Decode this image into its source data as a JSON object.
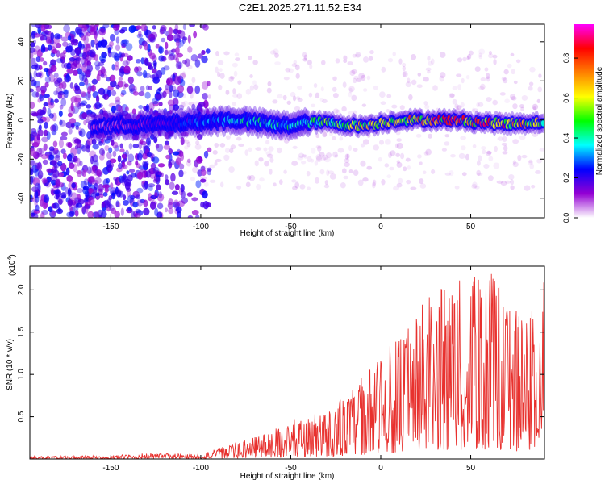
{
  "title": "C2E1.2025.271.11.52.E34",
  "chart_data": [
    {
      "type": "heatmap",
      "name": "spectrogram",
      "xlabel": "Height of straight line (km)",
      "ylabel": "Frequency (Hz)",
      "xlim": [
        -195,
        91
      ],
      "ylim": [
        -50,
        49
      ],
      "xticks": [
        -150,
        -100,
        -50,
        0,
        50
      ],
      "yticks": [
        -40,
        -20,
        0,
        20,
        40
      ],
      "xtick_labels": [
        "-150",
        "-100",
        "-50",
        "0",
        "50"
      ],
      "ytick_labels": [
        "-40",
        "-20",
        "0",
        "20",
        "40"
      ],
      "ridge_center_hz": [
        {
          "x": -150,
          "y": -3
        },
        {
          "x": -120,
          "y": -2
        },
        {
          "x": -100,
          "y": -1
        },
        {
          "x": -80,
          "y": 0
        },
        {
          "x": -55,
          "y": -3
        },
        {
          "x": -35,
          "y": -1
        },
        {
          "x": -10,
          "y": -3
        },
        {
          "x": 10,
          "y": 0
        },
        {
          "x": 40,
          "y": 0
        },
        {
          "x": 70,
          "y": -2
        },
        {
          "x": 90,
          "y": -1
        }
      ],
      "ridge_peak_amplitude": [
        {
          "x": -150,
          "a": 0.1
        },
        {
          "x": -110,
          "a": 0.25
        },
        {
          "x": -80,
          "a": 0.4
        },
        {
          "x": -50,
          "a": 0.45
        },
        {
          "x": -20,
          "a": 0.6
        },
        {
          "x": 10,
          "a": 0.7
        },
        {
          "x": 40,
          "a": 0.85
        },
        {
          "x": 65,
          "a": 0.8
        },
        {
          "x": 90,
          "a": 0.65
        }
      ],
      "colorbar": {
        "label": "Normalized spectral amplitude",
        "range": [
          0,
          0.97
        ],
        "ticks": [
          0,
          0.2,
          0.4,
          0.6,
          0.8
        ],
        "tick_labels": [
          "0.0",
          "0.2",
          "0.4",
          "0.6",
          "0.8"
        ],
        "colormap": [
          "#ffffff",
          "#9400d3",
          "#0000ff",
          "#00ffff",
          "#00ff00",
          "#ffff00",
          "#ff8000",
          "#ff0000",
          "#ff00ff"
        ]
      }
    },
    {
      "type": "line",
      "name": "snr",
      "xlabel": "Height of straight line (km)",
      "ylabel": "SNR (10 * v/v)",
      "y_multiplier": "(x10",
      "y_multiplier_exp": "4",
      "y_multiplier_close": ")",
      "xlim": [
        -195,
        91
      ],
      "ylim": [
        0,
        2.28
      ],
      "xticks": [
        -150,
        -100,
        -50,
        0,
        50
      ],
      "yticks": [
        0.5,
        1.0,
        1.5,
        2.0
      ],
      "xtick_labels": [
        "-150",
        "-100",
        "-50",
        "0",
        "50"
      ],
      "ytick_labels": [
        "0.5",
        "1.0",
        "1.5",
        "2.0"
      ],
      "series_color": "#e8312e",
      "envelope_max": [
        {
          "x": -195,
          "y": 0.03
        },
        {
          "x": -150,
          "y": 0.04
        },
        {
          "x": -130,
          "y": 0.07
        },
        {
          "x": -100,
          "y": 0.06
        },
        {
          "x": -80,
          "y": 0.2
        },
        {
          "x": -60,
          "y": 0.35
        },
        {
          "x": -50,
          "y": 0.45
        },
        {
          "x": -30,
          "y": 0.6
        },
        {
          "x": -20,
          "y": 0.75
        },
        {
          "x": -10,
          "y": 1.0
        },
        {
          "x": 0,
          "y": 1.25
        },
        {
          "x": 10,
          "y": 1.45
        },
        {
          "x": 20,
          "y": 1.7
        },
        {
          "x": 25,
          "y": 1.95
        },
        {
          "x": 35,
          "y": 2.1
        },
        {
          "x": 45,
          "y": 2.15
        },
        {
          "x": 55,
          "y": 2.2
        },
        {
          "x": 60,
          "y": 2.28
        },
        {
          "x": 70,
          "y": 1.9
        },
        {
          "x": 80,
          "y": 1.7
        },
        {
          "x": 88,
          "y": 1.85
        },
        {
          "x": 91,
          "y": 2.15
        }
      ]
    }
  ]
}
